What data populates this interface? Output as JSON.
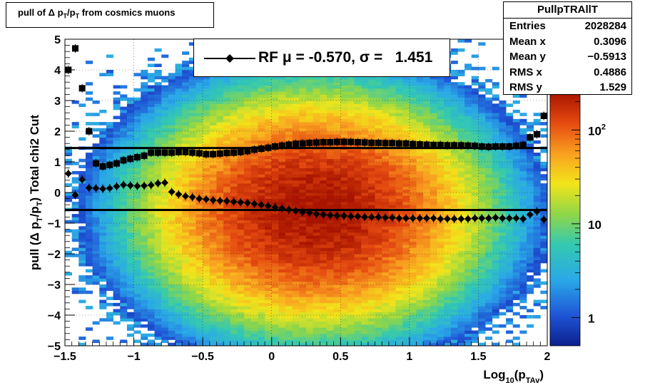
{
  "title": "pull of Δ p_T/p_T from cosmics muons",
  "title_parts": {
    "pre": "pull of ",
    "delta": "Δ",
    "p1": " p",
    "sub1": "T",
    "mid": "/p",
    "sub2": "T",
    "post": " from cosmics muons"
  },
  "stats": {
    "name": "PullpTRAllT",
    "rows": [
      {
        "label": "Entries",
        "value": "2028284"
      },
      {
        "label": "Mean x",
        "value": "0.3096"
      },
      {
        "label": "Mean y",
        "value": "−0.5913"
      },
      {
        "label": "RMS x",
        "value": "0.4886"
      },
      {
        "label": "RMS y",
        "value": "1.529"
      }
    ]
  },
  "legend": {
    "label": "RF μ = -0.570, σ =   1.451"
  },
  "xaxis": {
    "title_main": "Log",
    "title_sub": "10",
    "title_rest": "(p",
    "title_sub2": "TAv",
    "title_close": ")",
    "ticks": [
      "−1.5",
      "−1",
      "−0.5",
      "0",
      "0.5",
      "1",
      "1.5",
      "2"
    ]
  },
  "yaxis": {
    "title": "pull (Δ p_T/p_T)  Total chi2 Cut",
    "ticks": [
      "−5",
      "−4",
      "−3",
      "−2",
      "−1",
      "0",
      "1",
      "2",
      "3",
      "4",
      "5"
    ]
  },
  "zaxis": {
    "ticks": [
      "1",
      "10",
      "10^2"
    ]
  },
  "colors": {
    "hot": "#b01800",
    "mid": "#f5e61e",
    "cold": "#1e6fd0",
    "line": "#000000"
  },
  "chart_data": {
    "type": "heatmap",
    "title": "pull of Δ p_T/p_T from cosmics muons",
    "xlabel": "Log10(pTAv)",
    "ylabel": "pull (Δ p_T/p_T)  Total chi2 Cut",
    "xlim": [
      -1.5,
      2.0
    ],
    "ylim": [
      -5,
      5
    ],
    "zscale": "log",
    "zlim": [
      0.5,
      250
    ],
    "grid": true,
    "stats": {
      "entries": 2028284,
      "mean_x": 0.3096,
      "mean_y": -0.5913,
      "rms_x": 0.4886,
      "rms_y": 1.529
    },
    "hlines": [
      {
        "y": 1.451,
        "label": "σ"
      },
      {
        "y": -0.57,
        "label": "μ"
      }
    ],
    "series": [
      {
        "name": "RF",
        "marker": "diamond",
        "x": [
          -1.475,
          -1.425,
          -1.375,
          -1.325,
          -1.275,
          -1.225,
          -1.175,
          -1.125,
          -1.075,
          -1.025,
          -0.975,
          -0.925,
          -0.875,
          -0.825,
          -0.775,
          -0.725,
          -0.675,
          -0.625,
          -0.575,
          -0.525,
          -0.475,
          -0.425,
          -0.375,
          -0.325,
          -0.275,
          -0.225,
          -0.175,
          -0.125,
          -0.075,
          -0.025,
          0.025,
          0.075,
          0.125,
          0.175,
          0.225,
          0.275,
          0.325,
          0.375,
          0.425,
          0.475,
          0.525,
          0.575,
          0.625,
          0.675,
          0.725,
          0.775,
          0.825,
          0.875,
          0.925,
          0.975,
          1.025,
          1.075,
          1.125,
          1.175,
          1.225,
          1.275,
          1.325,
          1.375,
          1.425,
          1.475,
          1.525,
          1.575,
          1.625,
          1.675,
          1.725,
          1.775,
          1.825,
          1.875,
          1.925,
          1.975
        ],
        "y": [
          0.62,
          -0.08,
          0.42,
          0.15,
          0.14,
          0.12,
          0.14,
          0.2,
          0.25,
          0.23,
          0.21,
          0.22,
          0.24,
          0.3,
          0.32,
          0.02,
          -0.06,
          -0.12,
          -0.15,
          -0.2,
          -0.22,
          -0.25,
          -0.27,
          -0.28,
          -0.3,
          -0.32,
          -0.34,
          -0.37,
          -0.4,
          -0.44,
          -0.48,
          -0.52,
          -0.56,
          -0.6,
          -0.64,
          -0.66,
          -0.7,
          -0.72,
          -0.74,
          -0.76,
          -0.76,
          -0.78,
          -0.78,
          -0.8,
          -0.8,
          -0.8,
          -0.82,
          -0.82,
          -0.84,
          -0.84,
          -0.84,
          -0.84,
          -0.84,
          -0.84,
          -0.86,
          -0.86,
          -0.86,
          -0.86,
          -0.86,
          -0.84,
          -0.84,
          -0.84,
          -0.82,
          -0.84,
          -0.84,
          -0.84,
          -0.86,
          -0.72,
          -0.62,
          -0.88
        ]
      },
      {
        "name": "",
        "marker": "square",
        "x": [
          -1.475,
          -1.425,
          -1.375,
          -1.325,
          -1.275,
          -1.225,
          -1.175,
          -1.125,
          -1.075,
          -1.025,
          -0.975,
          -0.925,
          -0.875,
          -0.825,
          -0.775,
          -0.725,
          -0.675,
          -0.625,
          -0.575,
          -0.525,
          -0.475,
          -0.425,
          -0.375,
          -0.325,
          -0.275,
          -0.225,
          -0.175,
          -0.125,
          -0.075,
          -0.025,
          0.025,
          0.075,
          0.125,
          0.175,
          0.225,
          0.275,
          0.325,
          0.375,
          0.425,
          0.475,
          0.525,
          0.575,
          0.625,
          0.675,
          0.725,
          0.775,
          0.825,
          0.875,
          0.925,
          0.975,
          1.025,
          1.075,
          1.125,
          1.175,
          1.225,
          1.275,
          1.325,
          1.375,
          1.425,
          1.475,
          1.525,
          1.575,
          1.625,
          1.675,
          1.725,
          1.775,
          1.825,
          1.875,
          1.925,
          1.975
        ],
        "y": [
          4.0,
          4.7,
          3.4,
          2.0,
          0.95,
          0.85,
          0.9,
          0.95,
          1.05,
          1.1,
          1.15,
          1.2,
          1.3,
          1.3,
          1.3,
          1.3,
          1.32,
          1.32,
          1.3,
          1.28,
          1.25,
          1.25,
          1.27,
          1.29,
          1.3,
          1.32,
          1.35,
          1.4,
          1.43,
          1.46,
          1.5,
          1.53,
          1.56,
          1.59,
          1.6,
          1.62,
          1.63,
          1.64,
          1.64,
          1.65,
          1.65,
          1.65,
          1.64,
          1.63,
          1.62,
          1.62,
          1.61,
          1.61,
          1.6,
          1.6,
          1.58,
          1.57,
          1.56,
          1.55,
          1.55,
          1.54,
          1.54,
          1.54,
          1.53,
          1.52,
          1.5,
          1.49,
          1.5,
          1.5,
          1.5,
          1.52,
          1.55,
          1.8,
          1.9,
          2.5
        ]
      }
    ]
  }
}
